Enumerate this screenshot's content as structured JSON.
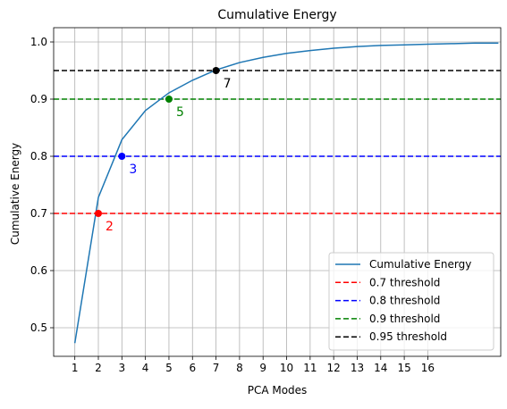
{
  "chart_data": {
    "type": "line",
    "title": "Cumulative Energy",
    "xlabel": "PCA Modes",
    "ylabel": "Cumulative Energy",
    "xlim": [
      0.1,
      19.1
    ],
    "ylim": [
      0.45,
      1.025
    ],
    "xticks": [
      1,
      2,
      3,
      4,
      5,
      6,
      7,
      8,
      9,
      10,
      11,
      12,
      13,
      14,
      15,
      16
    ],
    "yticks": [
      0.5,
      0.6,
      0.7,
      0.8,
      0.9,
      1.0
    ],
    "ytick_labels": [
      "0.5",
      "0.6",
      "0.7",
      "0.8",
      "0.9",
      "1.0"
    ],
    "grid": true,
    "legend_position": "bottom-right",
    "series": [
      {
        "name": "Cumulative Energy",
        "color": "#1f77b4",
        "x": [
          1,
          2,
          3,
          4,
          5,
          6,
          7,
          8,
          9,
          10,
          11,
          12,
          13,
          14,
          15,
          16,
          17,
          18,
          19
        ],
        "y": [
          0.473,
          0.728,
          0.829,
          0.88,
          0.911,
          0.933,
          0.951,
          0.964,
          0.973,
          0.98,
          0.985,
          0.989,
          0.992,
          0.994,
          0.995,
          0.996,
          0.997,
          0.998,
          0.998
        ]
      }
    ],
    "thresholds": [
      {
        "name": "0.7 threshold",
        "value": 0.7,
        "color": "#ff0000",
        "mode": 2,
        "mode_label": "2",
        "marker_y": 0.7
      },
      {
        "name": "0.8 threshold",
        "value": 0.8,
        "color": "#0000ff",
        "mode": 3,
        "mode_label": "3",
        "marker_y": 0.8
      },
      {
        "name": "0.9 threshold",
        "value": 0.9,
        "color": "#008000",
        "mode": 5,
        "mode_label": "5",
        "marker_y": 0.9
      },
      {
        "name": "0.95 threshold",
        "value": 0.95,
        "color": "#000000",
        "mode": 7,
        "mode_label": "7",
        "marker_y": 0.95
      }
    ]
  }
}
